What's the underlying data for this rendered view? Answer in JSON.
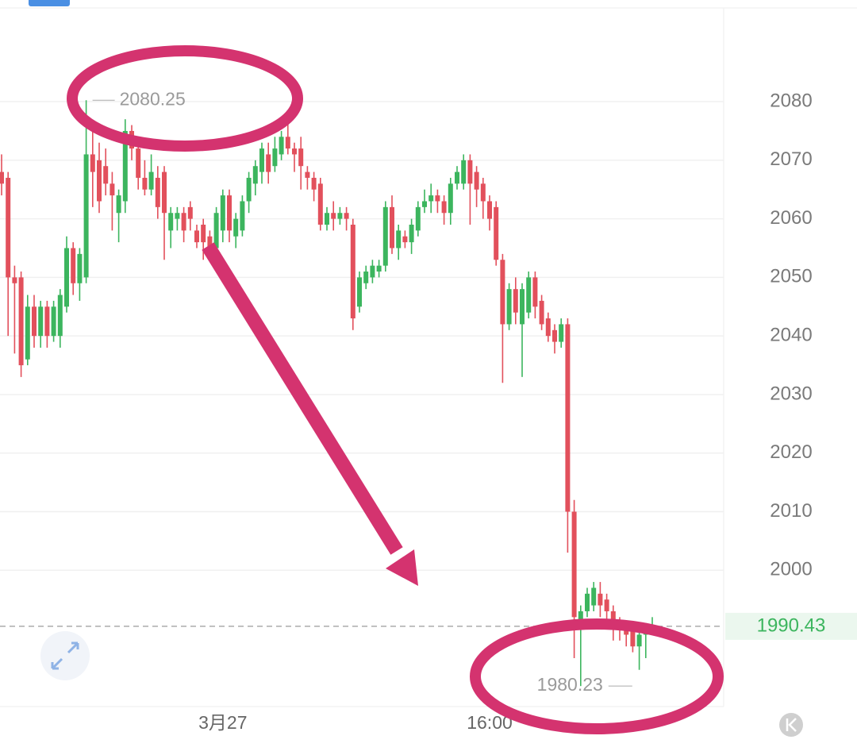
{
  "chart_data": {
    "type": "candlestick",
    "categories": [
      null,
      null,
      null,
      null,
      null,
      null,
      null,
      null,
      null,
      null,
      null,
      null,
      null,
      null,
      null,
      null,
      null,
      null,
      null,
      null,
      null,
      null,
      null,
      null,
      null,
      null,
      null,
      null,
      null,
      null,
      null,
      null,
      null,
      null,
      "3月27",
      null,
      null,
      null,
      null,
      null,
      null,
      null,
      null,
      null,
      null,
      null,
      null,
      null,
      null,
      null,
      null,
      null,
      null,
      null,
      null,
      null,
      null,
      null,
      null,
      null,
      null,
      null,
      null,
      null,
      null,
      null,
      null,
      null,
      null,
      null,
      null,
      null,
      null,
      null,
      null,
      "16:00",
      null,
      null,
      null,
      null,
      null,
      null,
      null,
      null,
      null,
      null,
      null,
      null,
      null,
      null,
      null,
      null,
      null,
      null,
      null,
      null,
      null,
      null,
      null,
      null,
      null
    ],
    "open": [
      2068,
      2067,
      2050,
      2050,
      2036,
      2045,
      2040,
      2045,
      2040,
      2040,
      2045,
      2055,
      2049,
      2050,
      2071,
      2070,
      2069,
      2066,
      2061,
      2063,
      2075,
      2072,
      2067,
      2065,
      2067,
      2068,
      2058,
      2060,
      2061,
      2062,
      2058,
      2059,
      2057,
      2055,
      2058,
      2064,
      2057,
      2058,
      2063,
      2066,
      2068,
      2071,
      2069,
      2071,
      2074,
      2072,
      2072,
      2068,
      2067,
      2066,
      2059,
      2061,
      2060,
      2061,
      2059,
      2045,
      2049,
      2050,
      2051,
      2052,
      2062,
      2055,
      2057,
      2056,
      2058,
      2062,
      2063,
      2064,
      2063,
      2061,
      2066,
      2066,
      2070,
      2068,
      2066,
      2063,
      2062,
      2053,
      2042,
      2048,
      2042,
      2044,
      2050,
      2046,
      2043,
      2041,
      2039,
      2042,
      2010,
      1990,
      1993,
      1994,
      1996,
      1995,
      1993,
      1991,
      1990,
      1990,
      1987,
      1989,
      1990
    ],
    "high": [
      2071,
      2068,
      2052,
      2051,
      2047,
      2047,
      2046,
      2046,
      2046,
      2048,
      2057,
      2056,
      2055,
      2080.25,
      2075,
      2073,
      2072,
      2068,
      2065,
      2077,
      2076,
      2073,
      2070,
      2071,
      2069,
      2069,
      2062,
      2062,
      2062,
      2063,
      2059,
      2060,
      2058,
      2062,
      2065,
      2065,
      2061,
      2064,
      2068,
      2070,
      2073,
      2073,
      2074,
      2075,
      2078,
      2073,
      2074,
      2069,
      2068,
      2067,
      2062,
      2063,
      2062,
      2062,
      2060,
      2051,
      2052,
      2053,
      2053,
      2063,
      2064,
      2059,
      2058,
      2060,
      2063,
      2065,
      2066,
      2065,
      2064,
      2067,
      2069,
      2071,
      2071,
      2069,
      2067,
      2064,
      2063,
      2054,
      2049,
      2050,
      2049,
      2051,
      2051,
      2047,
      2044,
      2042,
      2043,
      2043,
      2012,
      1994,
      1997,
      1998,
      1998,
      1996,
      1994,
      1992,
      1991,
      1991,
      1990,
      1991,
      1992
    ],
    "low": [
      2064,
      2040,
      2037,
      2033,
      2035,
      2038,
      2038,
      2038,
      2039,
      2038,
      2044,
      2047,
      2046,
      2049,
      2062,
      2061,
      2064,
      2058,
      2056,
      2061,
      2070,
      2065,
      2064,
      2064,
      2060,
      2053,
      2055,
      2058,
      2056,
      2058,
      2055,
      2053,
      2054,
      2054,
      2056,
      2056,
      2055,
      2057,
      2061,
      2064,
      2066,
      2066,
      2068,
      2070,
      2071,
      2068,
      2065,
      2065,
      2063,
      2058,
      2058,
      2058,
      2059,
      2058,
      2041,
      2044,
      2048,
      2049,
      2050,
      2051,
      2054,
      2053,
      2055,
      2054,
      2057,
      2061,
      2061,
      2061,
      2059,
      2059,
      2065,
      2065,
      2059,
      2062,
      2060,
      2058,
      2052,
      2032,
      2041,
      2042,
      2033,
      2043,
      2043,
      2041,
      2039,
      2037,
      2038,
      2003,
      1985,
      1980.23,
      1992,
      1993,
      1992,
      1991,
      1988,
      1988,
      1987,
      1986,
      1983,
      1985,
      1989
    ],
    "close": [
      2066,
      2050,
      2049,
      2035,
      2045,
      2040,
      2045,
      2040,
      2045,
      2047,
      2055,
      2049,
      2054,
      2071,
      2068,
      2063,
      2066,
      2064,
      2064,
      2075,
      2072,
      2067,
      2065,
      2068,
      2062,
      2061,
      2061,
      2061,
      2058,
      2060,
      2056,
      2056,
      2055,
      2061,
      2064,
      2058,
      2060,
      2063,
      2067,
      2069,
      2072,
      2068,
      2072,
      2074,
      2072,
      2071,
      2069,
      2067,
      2065,
      2059,
      2061,
      2060,
      2061,
      2060,
      2043,
      2050,
      2051,
      2052,
      2052,
      2062,
      2055,
      2058,
      2056,
      2059,
      2062,
      2063,
      2064,
      2063,
      2061,
      2066,
      2068,
      2070,
      2066,
      2065,
      2063,
      2060,
      2053,
      2042,
      2048,
      2044,
      2048,
      2050,
      2045,
      2042,
      2040,
      2039,
      2042,
      2010,
      1992,
      1993,
      1996,
      1997,
      1994,
      1993,
      1990,
      1990,
      1989,
      1987,
      1989,
      1990,
      1990.43
    ],
    "up_color": "#3cb55e",
    "down_color": "#e2505c",
    "ylim": [
      1977,
      2096
    ],
    "yticks": [
      2000,
      2010,
      2020,
      2030,
      2040,
      2050,
      2060,
      2070,
      2080
    ],
    "grid": true
  }
}
